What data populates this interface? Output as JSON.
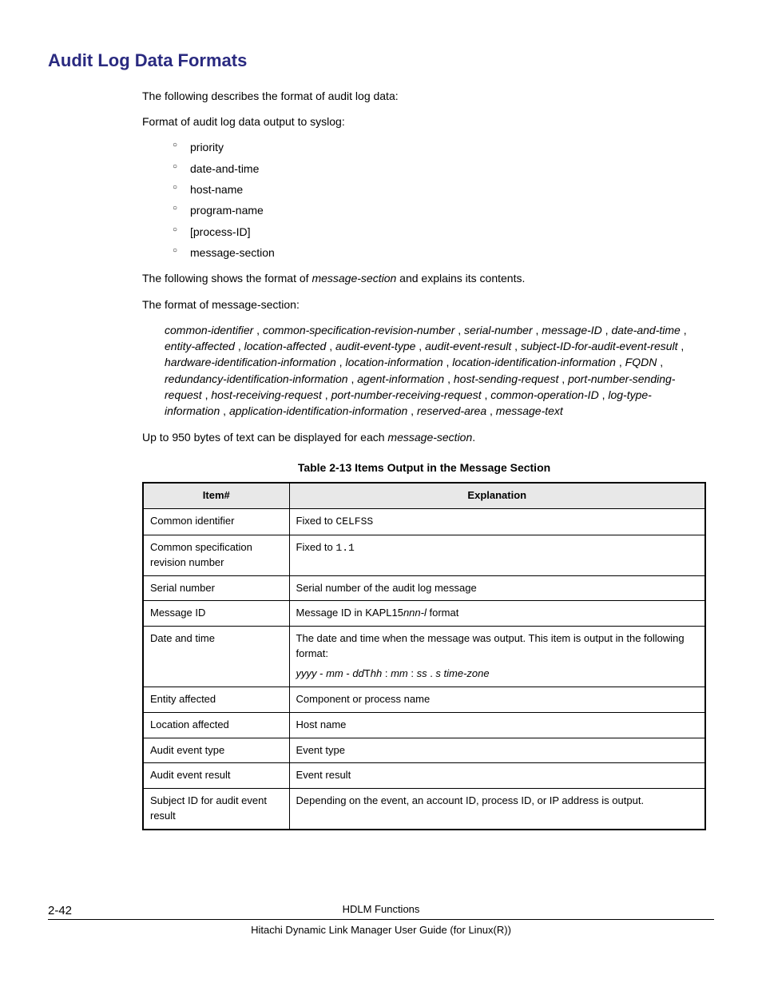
{
  "heading": "Audit Log Data Formats",
  "intro_p1": "The following describes the format of audit log data:",
  "intro_p2": "Format of audit log data output to syslog:",
  "bullets": [
    "priority",
    "date-and-time",
    "host-name",
    "program-name",
    "[process-ID]",
    "message-section"
  ],
  "p_after_bullets_pre": "The following shows the format of ",
  "p_after_bullets_em": "message-section",
  "p_after_bullets_post": " and explains its contents.",
  "p_format_label": "The format of message-section:",
  "format_items": [
    "common-identifier",
    "common-specification-revision-number",
    "serial-number",
    "message-ID",
    "date-and-time",
    "entity-affected",
    "location-affected",
    "audit-event-type",
    "audit-event-result",
    "subject-ID-for-audit-event-result",
    "hardware-identification-information",
    "location-information",
    "location-identification-information",
    "FQDN",
    "redundancy-identification-information",
    "agent-information",
    "host-sending-request",
    "port-number-sending-request",
    "host-receiving-request",
    "port-number-receiving-request",
    "common-operation-ID",
    "log-type-information",
    "application-identification-information",
    "reserved-area",
    "message-text"
  ],
  "p_upto_pre": "Up to 950 bytes of text can be displayed for each ",
  "p_upto_em": "message-section",
  "p_upto_post": ".",
  "table_caption": "Table 2-13 Items Output in the Message Section",
  "table": {
    "headers": [
      "Item#",
      "Explanation"
    ],
    "rows": [
      {
        "item": "Common identifier",
        "exp_pre": "Fixed to ",
        "exp_mono": "CELFSS",
        "exp_post": ""
      },
      {
        "item": "Common specification revision number",
        "exp_pre": "Fixed to ",
        "exp_mono": "1.1",
        "exp_post": ""
      },
      {
        "item": "Serial number",
        "exp_plain": "Serial number of the audit log message"
      },
      {
        "item": "Message ID",
        "exp_pre": "Message ID in KAPL15",
        "exp_em": "nnn-l",
        "exp_post": " format"
      },
      {
        "item": "Date and time",
        "exp_line1": "The date and time when the message was output. This item is output in the following format:",
        "exp_fmt_parts": [
          {
            "t": "yyyy",
            "i": true
          },
          {
            "t": " - ",
            "i": false
          },
          {
            "t": "mm",
            "i": true
          },
          {
            "t": " - ",
            "i": false
          },
          {
            "t": "dd",
            "i": true
          },
          {
            "t": "T",
            "i": false
          },
          {
            "t": "hh",
            "i": true
          },
          {
            "t": " : ",
            "i": false
          },
          {
            "t": "mm",
            "i": true
          },
          {
            "t": " : ",
            "i": false
          },
          {
            "t": "ss",
            "i": true
          },
          {
            "t": " . ",
            "i": false
          },
          {
            "t": "s time-zone",
            "i": true
          }
        ]
      },
      {
        "item": "Entity affected",
        "exp_plain": "Component or process name"
      },
      {
        "item": "Location affected",
        "exp_plain": "Host name"
      },
      {
        "item": "Audit event type",
        "exp_plain": "Event type"
      },
      {
        "item": "Audit event result",
        "exp_plain": "Event result"
      },
      {
        "item": "Subject ID for audit event result",
        "exp_plain": "Depending on the event, an account ID, process ID, or IP address is output."
      }
    ]
  },
  "footer": {
    "page": "2-42",
    "title1": "HDLM Functions",
    "title2": "Hitachi Dynamic Link Manager User Guide (for Linux(R))"
  }
}
